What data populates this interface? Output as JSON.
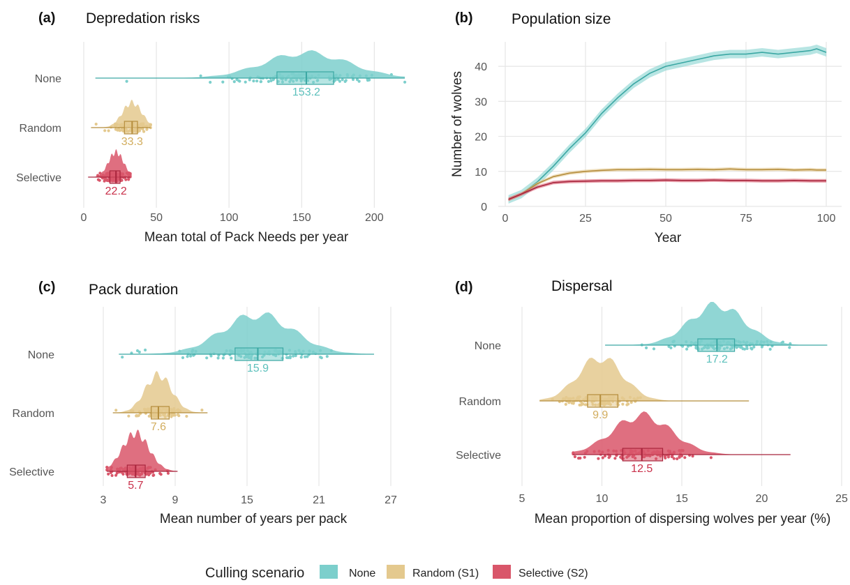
{
  "colors": {
    "none": "#7ccfcc",
    "random": "#e4c98e",
    "selective": "#d9566a",
    "none_dark": "#3aa7a3",
    "random_dark": "#b58d3c",
    "selective_dark": "#a8243c"
  },
  "legend": {
    "title": "Culling scenario",
    "items": [
      {
        "key": "none",
        "label": "None"
      },
      {
        "key": "random",
        "label": "Random (S1)"
      },
      {
        "key": "selective",
        "label": "Selective (S2)"
      }
    ]
  },
  "chart_data": [
    {
      "id": "a",
      "tag": "(a)",
      "title": "Depredation risks",
      "type": "raincloud",
      "xlabel": "Mean total of Pack Needs per year",
      "ylabel": "",
      "xlim": [
        0,
        220
      ],
      "xticks": [
        0,
        50,
        100,
        150,
        200
      ],
      "grid": true,
      "categories": [
        "None",
        "Random",
        "Selective"
      ],
      "groups": [
        {
          "key": "none",
          "name": "None",
          "min": 8,
          "q1": 133,
          "median": 153.2,
          "q3": 172,
          "max": 221,
          "label": "153.2"
        },
        {
          "key": "random",
          "name": "Random",
          "min": 5,
          "q1": 28,
          "median": 33.3,
          "q3": 37,
          "max": 46,
          "label": "33.3"
        },
        {
          "key": "selective",
          "name": "Selective",
          "min": 3,
          "q1": 18,
          "median": 22.2,
          "q3": 25,
          "max": 32,
          "label": "22.2"
        }
      ]
    },
    {
      "id": "b",
      "tag": "(b)",
      "title": "Population size",
      "type": "line",
      "xlabel": "Year",
      "ylabel": "Number of wolves",
      "xlim": [
        0,
        100
      ],
      "ylim": [
        0,
        47
      ],
      "xticks": [
        0,
        25,
        50,
        75,
        100
      ],
      "yticks": [
        0,
        10,
        20,
        30,
        40
      ],
      "grid": true,
      "x": [
        1,
        5,
        10,
        15,
        20,
        25,
        30,
        35,
        40,
        45,
        50,
        55,
        60,
        65,
        70,
        75,
        80,
        85,
        90,
        95,
        97,
        100
      ],
      "series": [
        {
          "key": "none",
          "name": "None",
          "values": [
            2,
            3.5,
            7,
            11.5,
            16.5,
            21,
            26.5,
            31,
            35,
            38,
            40,
            41,
            42,
            43,
            43.5,
            43.5,
            44,
            43.5,
            44,
            44.5,
            45,
            44
          ]
        },
        {
          "key": "random",
          "name": "Random (S1)",
          "values": [
            2,
            3.5,
            6.5,
            8.5,
            9.5,
            10,
            10.3,
            10.5,
            10.5,
            10.6,
            10.5,
            10.5,
            10.6,
            10.5,
            10.7,
            10.5,
            10.5,
            10.6,
            10.4,
            10.5,
            10.4,
            10.4
          ]
        },
        {
          "key": "selective",
          "name": "Selective (S2)",
          "values": [
            2,
            3.5,
            5.5,
            6.8,
            7.1,
            7.2,
            7.3,
            7.3,
            7.4,
            7.4,
            7.5,
            7.4,
            7.4,
            7.5,
            7.4,
            7.4,
            7.3,
            7.3,
            7.4,
            7.3,
            7.3,
            7.3
          ]
        }
      ]
    },
    {
      "id": "c",
      "tag": "(c)",
      "title": "Pack duration",
      "type": "raincloud",
      "xlabel": "Mean number of years per pack",
      "ylabel": "",
      "xlim": [
        3,
        27
      ],
      "xticks": [
        3,
        9,
        15,
        21,
        27
      ],
      "grid": true,
      "categories": [
        "None",
        "Random",
        "Selective"
      ],
      "groups": [
        {
          "key": "none",
          "name": "None",
          "min": 4.3,
          "q1": 14,
          "median": 15.9,
          "q3": 18,
          "max": 25.6,
          "label": "15.9"
        },
        {
          "key": "random",
          "name": "Random",
          "min": 3.8,
          "q1": 7,
          "median": 7.6,
          "q3": 8.5,
          "max": 11.7,
          "label": "7.6"
        },
        {
          "key": "selective",
          "name": "Selective",
          "min": 3.3,
          "q1": 5,
          "median": 5.7,
          "q3": 6.5,
          "max": 9.2,
          "label": "5.7"
        }
      ]
    },
    {
      "id": "d",
      "tag": "(d)",
      "title": "Dispersal",
      "type": "raincloud",
      "xlabel": "Mean proportion of dispersing wolves per year (%)",
      "ylabel": "",
      "xlim": [
        5,
        25
      ],
      "xticks": [
        5,
        10,
        15,
        20,
        25
      ],
      "grid": true,
      "categories": [
        "None",
        "Random",
        "Selective"
      ],
      "groups": [
        {
          "key": "none",
          "name": "None",
          "min": 10.2,
          "q1": 16,
          "median": 17.2,
          "q3": 18.3,
          "max": 24.1,
          "label": "17.2"
        },
        {
          "key": "random",
          "name": "Random",
          "min": 6.1,
          "q1": 9.1,
          "median": 9.9,
          "q3": 11,
          "max": 19.2,
          "label": "9.9"
        },
        {
          "key": "selective",
          "name": "Selective",
          "min": 8.2,
          "q1": 11.3,
          "median": 12.5,
          "q3": 13.8,
          "max": 21.8,
          "label": "12.5"
        }
      ]
    }
  ]
}
